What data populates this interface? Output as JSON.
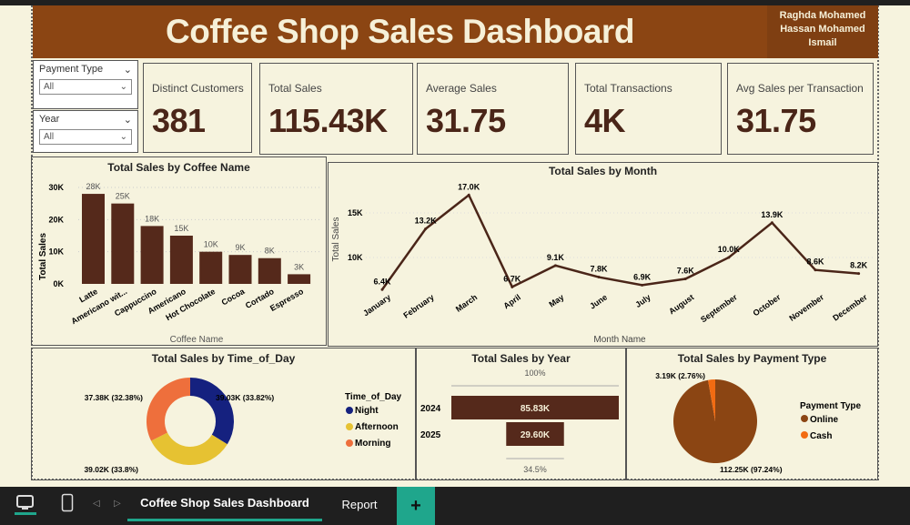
{
  "header": {
    "title": "Coffee Shop Sales Dashboard",
    "author_lines": [
      "Raghda Mohamed",
      "Hassan Mohamed",
      "Ismail"
    ]
  },
  "slicers": [
    {
      "label": "Payment Type",
      "value": "All"
    },
    {
      "label": "Year",
      "value": "All"
    }
  ],
  "cards": [
    {
      "title": "Distinct Customers",
      "value": "381"
    },
    {
      "title": "Total Sales",
      "value": "115.43K"
    },
    {
      "title": "Average Sales",
      "value": "31.75"
    },
    {
      "title": "Total Transactions",
      "value": "4K"
    },
    {
      "title": "Avg Sales per Transaction",
      "value": "31.75"
    }
  ],
  "colors": {
    "brand": "#8b4513",
    "bar": "#55291b",
    "background": "#f6f3de",
    "accent": "#1fa68c"
  },
  "chart_data": [
    {
      "type": "bar",
      "title": "Total Sales by Coffee Name",
      "xlabel": "Coffee Name",
      "ylabel": "Total Sales",
      "categories": [
        "Latte",
        "Americano wit...",
        "Cappuccino",
        "Americano",
        "Hot Chocolate",
        "Cocoa",
        "Cortado",
        "Espresso"
      ],
      "values": [
        28,
        25,
        18,
        15,
        10,
        9,
        8,
        3
      ],
      "labels": [
        "28K",
        "25K",
        "18K",
        "15K",
        "10K",
        "9K",
        "8K",
        "3K"
      ],
      "yticks": [
        "0K",
        "10K",
        "20K",
        "30K"
      ],
      "ylim": [
        0,
        30
      ],
      "unit": "K"
    },
    {
      "type": "line",
      "title": "Total Sales by Month",
      "xlabel": "Month Name",
      "ylabel": "Total Sales",
      "categories": [
        "January",
        "February",
        "March",
        "April",
        "May",
        "June",
        "July",
        "August",
        "September",
        "October",
        "November",
        "December"
      ],
      "values": [
        6.4,
        13.2,
        17.0,
        6.7,
        9.1,
        7.8,
        6.9,
        7.6,
        10.0,
        13.9,
        8.6,
        8.2
      ],
      "labels": [
        "6.4K",
        "13.2K",
        "17.0K",
        "6.7K",
        "9.1K",
        "7.8K",
        "6.9K",
        "7.6K",
        "10.0K",
        "13.9K",
        "8.6K",
        "8.2K"
      ],
      "yticks": [
        "10K",
        "15K"
      ],
      "unit": "K"
    },
    {
      "type": "pie",
      "subtype": "donut",
      "title": "Total Sales by Time_of_Day",
      "legend_title": "Time_of_Day",
      "slices": [
        {
          "name": "Night",
          "value": 39.03,
          "label": "39.03K (33.82%)",
          "color": "#15217f"
        },
        {
          "name": "Afternoon",
          "value": 39.02,
          "label": "39.02K (33.8%)",
          "color": "#e6c232"
        },
        {
          "name": "Morning",
          "value": 37.38,
          "label": "37.38K (32.38%)",
          "color": "#ee6f3c"
        }
      ]
    },
    {
      "type": "bar",
      "subtype": "funnel",
      "title": "Total Sales by Year",
      "categories": [
        "2024",
        "2025"
      ],
      "values": [
        85.83,
        29.6
      ],
      "labels": [
        "85.83K",
        "29.60K"
      ],
      "percent_labels": [
        "100%",
        "34.5%"
      ]
    },
    {
      "type": "pie",
      "title": "Total Sales by Payment Type",
      "legend_title": "Payment Type",
      "slices": [
        {
          "name": "Online",
          "value": 112.25,
          "label": "112.25K (97.24%)",
          "color": "#8b4513"
        },
        {
          "name": "Cash",
          "value": 3.19,
          "label": "3.19K (2.76%)",
          "color": "#f26b12"
        }
      ]
    }
  ],
  "tabs": {
    "active": "Coffee Shop Sales Dashboard",
    "other": "Report",
    "add": "+"
  }
}
